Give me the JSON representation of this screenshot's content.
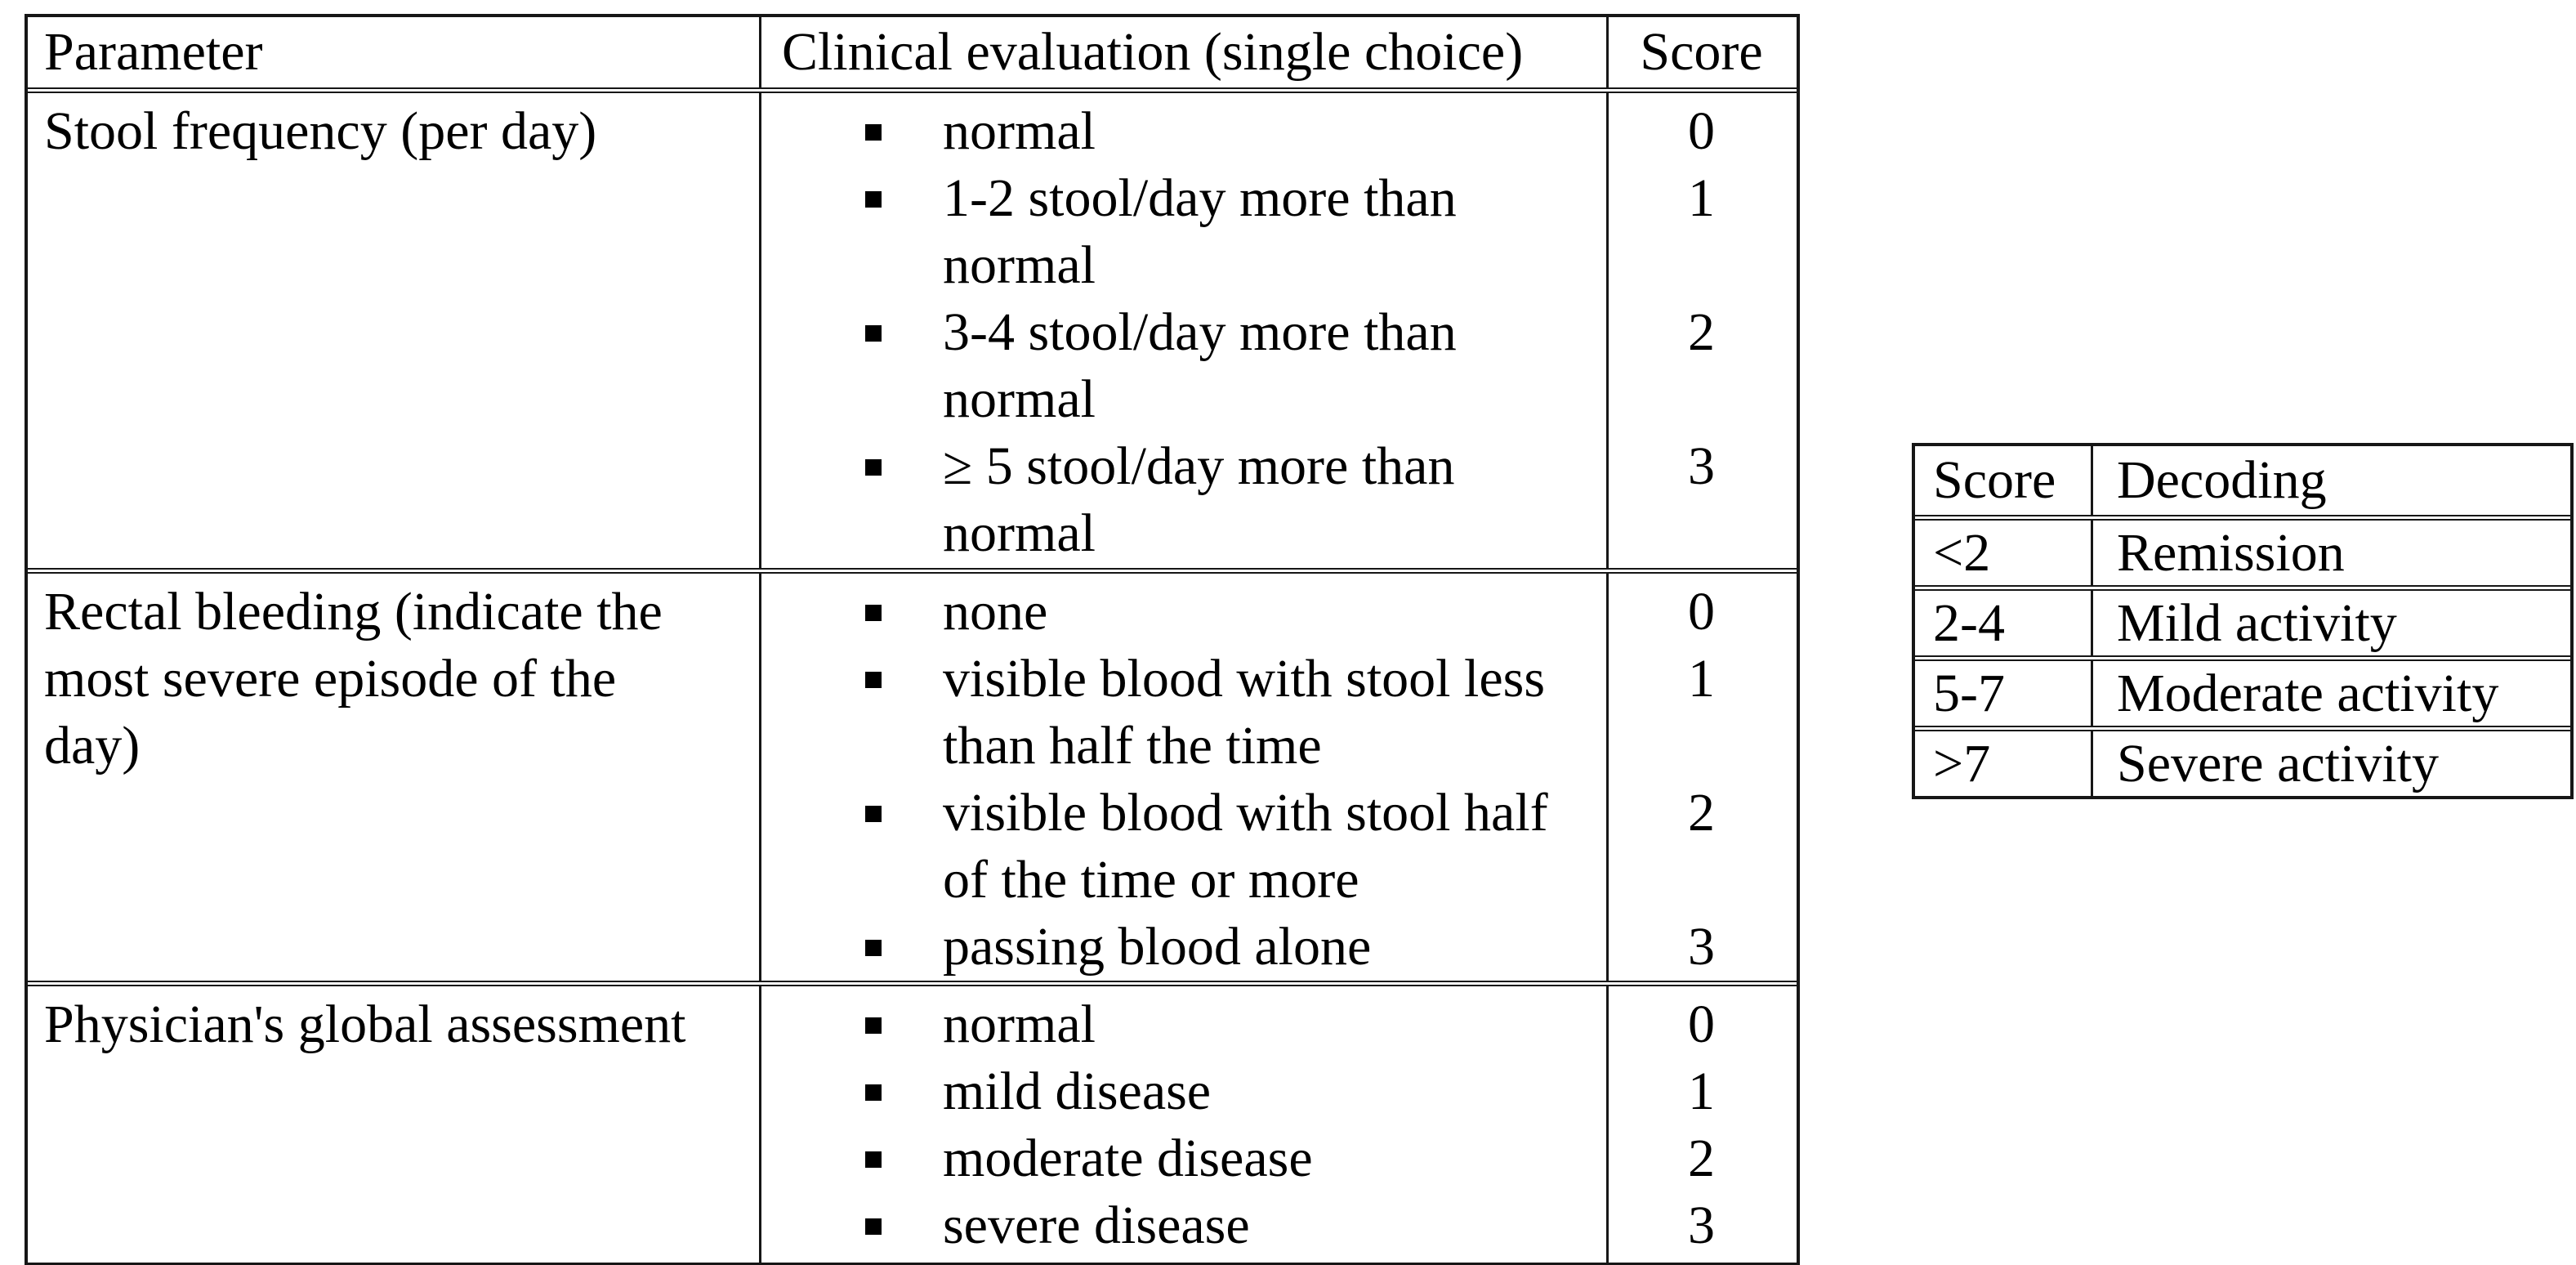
{
  "colors": {
    "background": "#ffffff",
    "text": "#000000",
    "border": "#161616"
  },
  "main_table": {
    "headers": {
      "parameter": "Parameter",
      "evaluation": "Clinical evaluation (single choice)",
      "score": "Score"
    },
    "rows": [
      {
        "parameter_lines": [
          "Stool frequency (per day)"
        ],
        "options": [
          {
            "lines": [
              "normal"
            ],
            "score": "0"
          },
          {
            "lines": [
              "1-2 stool/day more than",
              "normal"
            ],
            "score": "1"
          },
          {
            "lines": [
              "3-4 stool/day more than",
              "normal"
            ],
            "score": "2"
          },
          {
            "lines": [
              "≥ 5 stool/day more than",
              "normal"
            ],
            "score": "3"
          }
        ]
      },
      {
        "parameter_lines": [
          "Rectal bleeding (indicate the",
          "most severe episode of the",
          "day)"
        ],
        "options": [
          {
            "lines": [
              "none"
            ],
            "score": "0"
          },
          {
            "lines": [
              "visible blood with stool less",
              "than half the time"
            ],
            "score": "1"
          },
          {
            "lines": [
              "visible blood with stool half",
              "of the time or more"
            ],
            "score": "2"
          },
          {
            "lines": [
              "passing blood alone"
            ],
            "score": "3"
          }
        ]
      },
      {
        "parameter_lines": [
          "Physician's global assessment"
        ],
        "options": [
          {
            "lines": [
              "normal"
            ],
            "score": "0"
          },
          {
            "lines": [
              "mild disease"
            ],
            "score": "1"
          },
          {
            "lines": [
              "moderate disease"
            ],
            "score": "2"
          },
          {
            "lines": [
              "severe disease"
            ],
            "score": "3"
          }
        ]
      }
    ]
  },
  "decoding_table": {
    "headers": {
      "score": "Score",
      "decoding": "Decoding"
    },
    "rows": [
      {
        "score": "<2",
        "decoding": "Remission"
      },
      {
        "score": "2-4",
        "decoding": "Mild activity"
      },
      {
        "score": "5-7",
        "decoding": "Moderate activity"
      },
      {
        "score": ">7",
        "decoding": "Severe activity"
      }
    ]
  }
}
